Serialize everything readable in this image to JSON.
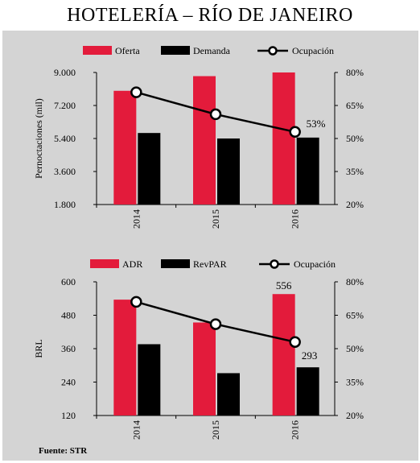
{
  "title": "HOTELERÍA – RÍO DE JANEIRO",
  "source": "Fuente: STR",
  "colors": {
    "red": "#e31b3b",
    "black": "#000000",
    "background": "#d4d4d4"
  },
  "chart_data": [
    {
      "type": "bar",
      "categories": [
        "2014",
        "2015",
        "2016"
      ],
      "series": [
        {
          "name": "Oferta",
          "kind": "bar",
          "axis": "left",
          "color": "#e31b3b",
          "values": [
            8000,
            8800,
            9000
          ]
        },
        {
          "name": "Demanda",
          "kind": "bar",
          "axis": "left",
          "color": "#000000",
          "values": [
            5700,
            5400,
            5450
          ]
        },
        {
          "name": "Ocupación",
          "kind": "line",
          "axis": "right",
          "color": "#000000",
          "values": [
            71,
            61,
            53
          ]
        }
      ],
      "ylabel": "Pernoctaciones (mil)",
      "ylim": [
        1800,
        9000
      ],
      "yticks": [
        "1.800",
        "3.600",
        "5.400",
        "7.200",
        "9.000"
      ],
      "y2lim": [
        20,
        80
      ],
      "y2ticks": [
        "20%",
        "35%",
        "50%",
        "65%",
        "80%"
      ],
      "labels": [
        {
          "text": "53%"
        }
      ]
    },
    {
      "type": "bar",
      "categories": [
        "2014",
        "2015",
        "2016"
      ],
      "series": [
        {
          "name": "ADR",
          "kind": "bar",
          "axis": "left",
          "color": "#e31b3b",
          "values": [
            536,
            454,
            556
          ]
        },
        {
          "name": "RevPAR",
          "kind": "bar",
          "axis": "left",
          "color": "#000000",
          "values": [
            376,
            272,
            293
          ]
        },
        {
          "name": "Ocupación",
          "kind": "line",
          "axis": "right",
          "color": "#000000",
          "values": [
            71,
            61,
            53
          ]
        }
      ],
      "ylabel": "BRL",
      "ylim": [
        120,
        600
      ],
      "yticks": [
        "120",
        "240",
        "360",
        "480",
        "600"
      ],
      "y2lim": [
        20,
        80
      ],
      "y2ticks": [
        "20%",
        "35%",
        "50%",
        "65%",
        "80%"
      ],
      "labels": [
        {
          "text": "556"
        },
        {
          "text": "293"
        }
      ]
    }
  ]
}
